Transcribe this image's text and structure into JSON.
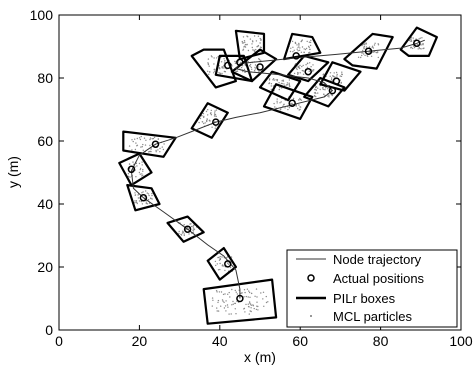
{
  "chart_data": {
    "type": "scatter",
    "title": "",
    "xlabel": "x (m)",
    "ylabel": "y (m)",
    "xlim": [
      0,
      100
    ],
    "ylim": [
      0,
      100
    ],
    "xticks": [
      0,
      20,
      40,
      60,
      80,
      100
    ],
    "yticks": [
      0,
      20,
      40,
      60,
      80,
      100
    ],
    "grid": false,
    "legend_position": "bottom-right",
    "legend": [
      {
        "label": "Node trajectory",
        "style": "thin-line"
      },
      {
        "label": "Actual positions",
        "style": "circle-marker"
      },
      {
        "label": "PILr boxes",
        "style": "thick-line"
      },
      {
        "label": "MCL particles",
        "style": "dot"
      }
    ],
    "series": [
      {
        "name": "Node trajectory",
        "kind": "line",
        "points": [
          [
            91,
            92
          ],
          [
            89,
            91
          ],
          [
            85,
            89.5
          ],
          [
            77,
            88.5
          ],
          [
            69,
            87.5
          ],
          [
            60,
            86.5
          ],
          [
            52,
            85.5
          ],
          [
            48,
            85
          ],
          [
            45,
            84.5
          ],
          [
            44,
            83
          ],
          [
            47,
            82
          ],
          [
            55,
            81
          ],
          [
            62,
            80
          ],
          [
            66,
            78.5
          ],
          [
            68,
            76
          ],
          [
            66,
            74
          ],
          [
            58,
            71.5
          ],
          [
            50,
            69
          ],
          [
            44,
            67.5
          ],
          [
            39,
            66
          ],
          [
            34,
            63.5
          ],
          [
            29,
            61
          ],
          [
            24,
            59
          ],
          [
            20,
            55.5
          ],
          [
            18,
            50.5
          ],
          [
            18.5,
            45
          ],
          [
            21,
            42
          ],
          [
            26,
            37.5
          ],
          [
            32,
            32
          ],
          [
            37,
            27
          ],
          [
            41,
            23.5
          ],
          [
            44,
            19
          ],
          [
            45,
            13
          ],
          [
            45,
            10
          ]
        ]
      },
      {
        "name": "Actual positions",
        "kind": "markers",
        "points": [
          [
            45,
            10
          ],
          [
            42,
            21
          ],
          [
            32,
            32
          ],
          [
            21,
            42
          ],
          [
            18,
            51
          ],
          [
            24,
            59
          ],
          [
            39,
            66
          ],
          [
            58,
            72
          ],
          [
            68,
            76
          ],
          [
            69,
            79
          ],
          [
            62,
            82
          ],
          [
            59,
            87
          ],
          [
            77,
            88.5
          ],
          [
            89,
            91
          ],
          [
            50,
            83.5
          ],
          [
            45,
            85
          ],
          [
            42,
            84
          ]
        ]
      },
      {
        "name": "PILr boxes",
        "kind": "polygons",
        "boxes": [
          [
            [
              36,
              13
            ],
            [
              53,
              16
            ],
            [
              54,
              4
            ],
            [
              37,
              2
            ]
          ],
          [
            [
              37,
              22
            ],
            [
              41,
              26
            ],
            [
              44,
              20
            ],
            [
              40,
              16
            ]
          ],
          [
            [
              27,
              34
            ],
            [
              32,
              36
            ],
            [
              36,
              31
            ],
            [
              31,
              28
            ]
          ],
          [
            [
              17,
              46
            ],
            [
              23,
              45
            ],
            [
              25,
              40
            ],
            [
              19,
              38
            ]
          ],
          [
            [
              15,
              53
            ],
            [
              20,
              56
            ],
            [
              23,
              50
            ],
            [
              18,
              46
            ]
          ],
          [
            [
              16,
              63
            ],
            [
              29,
              61
            ],
            [
              26,
              55
            ],
            [
              16,
              57
            ]
          ],
          [
            [
              37,
              72
            ],
            [
              42,
              69
            ],
            [
              38,
              61
            ],
            [
              33,
              64
            ]
          ],
          [
            [
              54,
              78
            ],
            [
              63,
              74
            ],
            [
              60,
              67
            ],
            [
              51,
              71
            ]
          ],
          [
            [
              65,
              80
            ],
            [
              71,
              77
            ],
            [
              67,
              71
            ],
            [
              61,
              74
            ]
          ],
          [
            [
              61,
              87
            ],
            [
              67,
              85
            ],
            [
              62,
              79
            ],
            [
              57,
              81
            ]
          ],
          [
            [
              68,
              85
            ],
            [
              75,
              82
            ],
            [
              71,
              76
            ],
            [
              65,
              78
            ]
          ],
          [
            [
              53,
              82
            ],
            [
              60,
              79
            ],
            [
              57,
              73
            ],
            [
              50,
              77
            ]
          ],
          [
            [
              58,
              94
            ],
            [
              63,
              93
            ],
            [
              65,
              88
            ],
            [
              56,
              86
            ]
          ],
          [
            [
              44,
              95
            ],
            [
              51,
              94
            ],
            [
              51,
              88
            ],
            [
              45,
              86
            ]
          ],
          [
            [
              50,
              89
            ],
            [
              54,
              86
            ],
            [
              48,
              79
            ],
            [
              43,
              82
            ]
          ],
          [
            [
              36,
              89
            ],
            [
              41,
              89
            ],
            [
              44,
              79
            ],
            [
              39,
              77
            ],
            [
              33,
              87
            ]
          ],
          [
            [
              40,
              87
            ],
            [
              46,
              87
            ],
            [
              48,
              79
            ],
            [
              39,
              81
            ]
          ],
          [
            [
              78,
              94
            ],
            [
              83,
              93
            ],
            [
              79,
              83
            ],
            [
              73,
              84
            ],
            [
              71,
              86
            ]
          ],
          [
            [
              89,
              96
            ],
            [
              94,
              93
            ],
            [
              92,
              87
            ],
            [
              87,
              87
            ],
            [
              85,
              89
            ]
          ]
        ]
      },
      {
        "name": "MCL particles",
        "kind": "particles",
        "clusters": [
          {
            "cx": 45,
            "cy": 9,
            "sx": 7,
            "sy": 4,
            "n": 90
          },
          {
            "cx": 41,
            "cy": 21,
            "sx": 2.2,
            "sy": 2.5,
            "n": 35
          },
          {
            "cx": 32,
            "cy": 32,
            "sx": 2.4,
            "sy": 2,
            "n": 35
          },
          {
            "cx": 21,
            "cy": 42,
            "sx": 2.2,
            "sy": 2.2,
            "n": 35
          },
          {
            "cx": 19,
            "cy": 51,
            "sx": 2,
            "sy": 2.5,
            "n": 35
          },
          {
            "cx": 22,
            "cy": 59,
            "sx": 4.5,
            "sy": 2.5,
            "n": 50
          },
          {
            "cx": 37,
            "cy": 67,
            "sx": 2.2,
            "sy": 3,
            "n": 40
          },
          {
            "cx": 57,
            "cy": 72,
            "sx": 3.5,
            "sy": 2.2,
            "n": 45
          },
          {
            "cx": 66,
            "cy": 76,
            "sx": 2.5,
            "sy": 2,
            "n": 40
          },
          {
            "cx": 61,
            "cy": 83,
            "sx": 2.5,
            "sy": 2,
            "n": 40
          },
          {
            "cx": 68,
            "cy": 80,
            "sx": 2.5,
            "sy": 2,
            "n": 40
          },
          {
            "cx": 55,
            "cy": 78,
            "sx": 2.8,
            "sy": 2,
            "n": 40
          },
          {
            "cx": 60,
            "cy": 90,
            "sx": 2.8,
            "sy": 2.2,
            "n": 40
          },
          {
            "cx": 48,
            "cy": 91,
            "sx": 2.5,
            "sy": 2.5,
            "n": 40
          },
          {
            "cx": 48,
            "cy": 84,
            "sx": 2.5,
            "sy": 2.2,
            "n": 40
          },
          {
            "cx": 39,
            "cy": 84,
            "sx": 2.4,
            "sy": 3,
            "n": 40
          },
          {
            "cx": 43,
            "cy": 84,
            "sx": 2.5,
            "sy": 2,
            "n": 35
          },
          {
            "cx": 77,
            "cy": 89,
            "sx": 2.5,
            "sy": 2.5,
            "n": 45
          },
          {
            "cx": 89,
            "cy": 91,
            "sx": 2,
            "sy": 1.8,
            "n": 35
          }
        ]
      }
    ]
  },
  "colors": {
    "background": "#ffffff",
    "axis": "#000000",
    "trajectory": "#333333",
    "particles": "#8a8a8a",
    "boxes": "#000000"
  }
}
